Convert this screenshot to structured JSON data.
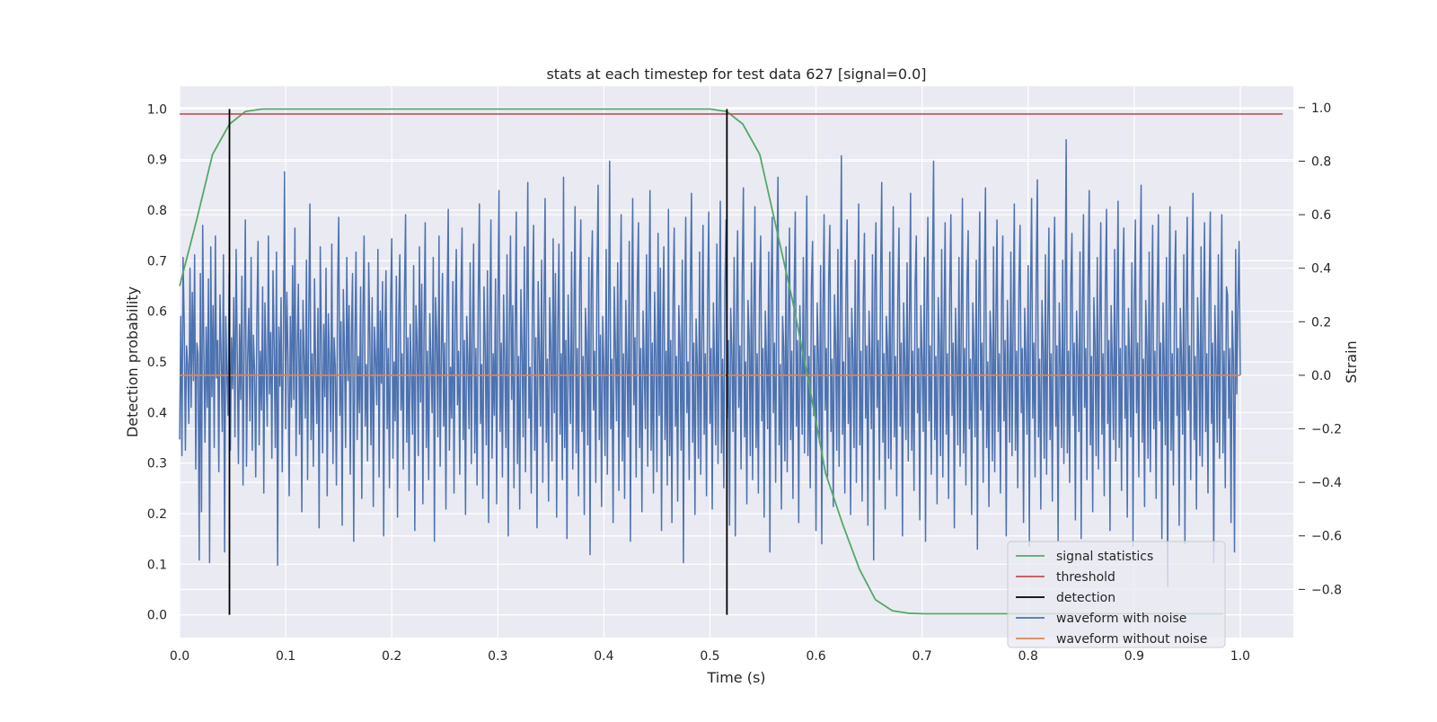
{
  "chart_data": {
    "type": "line",
    "title": "stats at each timestep for test data 627 [signal=0.0]",
    "xlabel": "Time (s)",
    "ylabel": "Detection probability",
    "y2label": "Strain",
    "xlim": [
      0.0,
      1.05
    ],
    "ylim": [
      -0.045,
      1.045
    ],
    "y2lim": [
      -0.98,
      1.08
    ],
    "x_ticks": [
      "0.0",
      "0.1",
      "0.2",
      "0.3",
      "0.4",
      "0.5",
      "0.6",
      "0.7",
      "0.8",
      "0.9",
      "1.0"
    ],
    "y_ticks": [
      "0.0",
      "0.1",
      "0.2",
      "0.3",
      "0.4",
      "0.5",
      "0.6",
      "0.7",
      "0.8",
      "0.9",
      "1.0"
    ],
    "y2_ticks": [
      "−0.8",
      "−0.6",
      "−0.4",
      "−0.2",
      "0.0",
      "0.2",
      "0.4",
      "0.6",
      "0.8",
      "1.0"
    ],
    "grid": true,
    "legend_position": "lower right",
    "colors": {
      "signal_statistics": "#55a868",
      "threshold": "#c44e52",
      "detection": "#000000",
      "waveform_with_noise": "#4c72b0",
      "waveform_without_noise": "#dd8452",
      "plot_background": "#eaeaf2",
      "grid": "#ffffff"
    },
    "series": [
      {
        "name": "signal statistics",
        "axis": "left",
        "x": [
          0.0,
          0.016,
          0.031,
          0.047,
          0.062,
          0.078,
          0.094,
          0.2,
          0.3,
          0.4,
          0.5,
          0.516,
          0.531,
          0.547,
          0.562,
          0.578,
          0.594,
          0.609,
          0.625,
          0.641,
          0.656,
          0.672,
          0.688,
          0.703,
          0.75,
          0.8,
          0.9,
          0.984
        ],
        "y": [
          0.65,
          0.78,
          0.91,
          0.97,
          0.995,
          1.0,
          1.0,
          1.0,
          1.0,
          1.0,
          1.0,
          0.995,
          0.97,
          0.91,
          0.77,
          0.62,
          0.45,
          0.28,
          0.18,
          0.09,
          0.03,
          0.008,
          0.003,
          0.002,
          0.002,
          0.002,
          0.002,
          0.002
        ]
      },
      {
        "name": "threshold",
        "axis": "left",
        "x": [
          0.0,
          1.04
        ],
        "y": [
          0.99,
          0.99
        ]
      },
      {
        "name": "detection",
        "axis": "left",
        "segments": [
          {
            "x": 0.047,
            "y": [
              0.0,
              1.0
            ]
          },
          {
            "x": 0.516,
            "y": [
              0.0,
              1.0
            ]
          }
        ]
      },
      {
        "name": "waveform with noise",
        "axis": "right",
        "x_range": [
          0.0,
          1.0
        ],
        "y": [
          -0.24,
          0.22,
          -0.3,
          0.44,
          0.19,
          -0.28,
          0.11,
          0.04,
          -0.18,
          0.4,
          -0.12,
          0.31,
          -0.02,
          0.45,
          -0.35,
          0.12,
          0.08,
          -0.69,
          0.38,
          -0.51,
          0.56,
          0.09,
          -0.25,
          0.18,
          -0.12,
          0.36,
          -0.7,
          0.48,
          -0.08,
          0.26,
          -0.27,
          0.52,
          -0.01,
          0.13,
          -0.36,
          0.3,
          0.07,
          -0.21,
          0.45,
          -0.66,
          0.22,
          0.01,
          -0.15,
          0.38,
          -0.28,
          0.14,
          -0.05,
          0.29,
          -0.23,
          0.47,
          0.08,
          -0.33,
          0.19,
          -0.09,
          0.37,
          -0.41,
          0.12,
          0.58,
          -0.34,
          0.06,
          0.25,
          -0.17,
          0.44,
          -0.28,
          0.15,
          0.02,
          -0.38,
          0.21,
          0.5,
          -0.26,
          0.09,
          -0.13,
          0.33,
          -0.44,
          0.27,
          0.04,
          -0.19,
          0.52,
          -0.07,
          0.16,
          -0.31,
          0.39,
          0.11,
          -0.27,
          0.46,
          -0.71,
          0.18,
          -0.04,
          0.29,
          -0.36,
          0.13,
          0.76,
          -0.2,
          0.31,
          0.07,
          -0.45,
          0.22,
          -0.12,
          0.41,
          -0.09,
          0.55,
          -0.3,
          0.1,
          0.34,
          -0.22,
          0.17,
          -0.51,
          0.28,
          0.06,
          -0.16,
          0.43,
          -0.39,
          0.21,
          0.64,
          -0.24,
          0.08,
          -0.34,
          0.36,
          0.02,
          -0.18,
          0.25,
          -0.57,
          0.48,
          0.12,
          -0.29,
          0.19,
          -0.08,
          0.4,
          -0.45,
          0.23,
          0.06,
          -0.21,
          0.49,
          -0.33,
          0.14,
          0.03,
          -0.41,
          0.31,
          0.59,
          -0.15,
          0.2,
          -0.56,
          0.32,
          0.09,
          -0.27,
          0.44,
          -0.02,
          0.26,
          -0.37,
          0.15,
          0.38,
          -0.62,
          0.11,
          0.46,
          -0.24,
          0.07,
          -0.14,
          0.33,
          -0.46,
          0.22,
          0.52,
          -0.19,
          0.04,
          -0.32,
          0.42,
          0.13,
          -0.26,
          0.29,
          -0.49,
          0.18,
          0.06,
          -0.11,
          0.47,
          -0.38,
          0.24,
          -0.03,
          0.35,
          -0.6,
          0.16,
          0.39,
          -0.2,
          0.1,
          -0.42,
          0.27,
          0.51,
          -0.31,
          0.05,
          -0.17,
          0.37,
          -0.53,
          0.21,
          0.45,
          -0.13,
          0.08,
          -0.35,
          0.3,
          0.6,
          -0.25,
          0.14,
          -0.43,
          0.19,
          0.01,
          -0.22,
          0.41,
          -0.58,
          0.26,
          0.12,
          -0.3,
          0.48,
          -0.1,
          0.34,
          -0.48,
          0.17,
          0.57,
          -0.27,
          0.09,
          -0.39,
          0.23,
          0.05,
          -0.14,
          0.44,
          -0.62,
          0.29,
          0.15,
          -0.23,
          0.52,
          -0.34,
          0.07,
          0.38,
          -0.19,
          0.12,
          -0.5,
          0.27,
          0.62,
          -0.28,
          0.03,
          -0.16,
          0.35,
          -0.44,
          0.2,
          0.47,
          -0.11,
          0.09,
          -0.37,
          0.31,
          0.55,
          -0.24,
          0.13,
          -0.52,
          0.22,
          0.06,
          -0.2,
          0.42,
          -0.33,
          0.17,
          0.49,
          -0.29,
          0.1,
          -0.41,
          0.28,
          0.64,
          -0.18,
          0.04,
          -0.46,
          0.33,
          0.11,
          -0.26,
          0.39,
          -0.55,
          0.19,
          0.58,
          -0.31,
          0.08,
          -0.15,
          0.36,
          -0.48,
          0.24,
          0.69,
          -0.21,
          0.12,
          -0.38,
          0.3,
          0.05,
          -0.27,
          0.45,
          -0.6,
          0.18,
          0.52,
          -0.09,
          0.26,
          -0.42,
          0.15,
          0.61,
          -0.33,
          0.07,
          -0.5,
          0.32,
          0.1,
          -0.23,
          0.48,
          -0.36,
          0.21,
          0.72,
          -0.16,
          0.03,
          -0.44,
          0.27,
          0.56,
          -0.28,
          0.14,
          -0.57,
          0.35,
          0.09,
          -0.19,
          0.43,
          -0.4,
          0.23,
          0.66,
          -0.25,
          0.06,
          -0.47,
          0.29,
          0.11,
          -0.32,
          0.51,
          -0.14,
          0.38,
          -0.53,
          0.17,
          0.49,
          -0.22,
          0.08,
          -0.39,
          0.74,
          -0.27,
          0.13,
          -0.61,
          0.3,
          0.04,
          -0.18,
          0.46,
          -0.35,
          0.2,
          0.63,
          -0.29,
          0.1,
          -0.45,
          0.34,
          0.58,
          -0.21,
          0.07,
          -0.52,
          0.25,
          0.12,
          -0.26,
          0.44,
          -0.67,
          0.31,
          0.54,
          -0.13,
          0.09,
          -0.4,
          0.36,
          0.71,
          -0.24,
          0.15,
          -0.49,
          0.22,
          0.02,
          -0.3,
          0.47,
          -0.37,
          0.18,
          0.8,
          -0.2,
          0.06,
          -0.55,
          0.33,
          0.11,
          -0.17,
          0.42,
          -0.43,
          0.27,
          0.6,
          -0.32,
          0.08,
          -0.46,
          0.28,
          0.05,
          -0.23,
          0.5,
          -0.62,
          0.19,
          0.66,
          -0.11,
          0.14,
          -0.38,
          0.35,
          0.57,
          -0.27,
          0.1,
          -0.51,
          0.24,
          0.03,
          -0.2,
          0.45,
          -0.34,
          0.22,
          0.69,
          -0.28,
          0.12,
          -0.44,
          0.31,
          0.07,
          -0.36,
          0.53,
          -0.15,
          0.4,
          -0.58,
          0.16,
          0.48,
          -0.24,
          0.09,
          -0.41,
          0.62,
          -0.3,
          0.13,
          -0.55,
          0.29,
          0.55,
          -0.19,
          0.07,
          -0.47,
          0.26,
          0.11,
          -0.28,
          0.43,
          -0.7,
          0.2,
          0.59,
          -0.14,
          0.05,
          -0.39,
          0.33,
          0.68,
          -0.25,
          0.12,
          -0.52,
          0.21,
          0.04,
          -0.31,
          0.46,
          -0.37,
          0.17,
          0.56,
          -0.22,
          0.08,
          -0.45,
          0.3,
          0.61,
          -0.18,
          0.1,
          -0.5,
          0.27,
          0.02,
          -0.26,
          0.49,
          -0.33,
          0.23,
          0.65,
          -0.29,
          0.06,
          -0.42,
          0.34,
          0.58,
          -0.16,
          0.13,
          -0.56,
          0.25,
          0.09,
          -0.21,
          0.44,
          -0.6,
          0.19,
          0.54,
          -0.12,
          0.11,
          -0.35,
          0.37,
          0.7,
          -0.23,
          0.05,
          -0.48,
          0.28,
          0.14,
          -0.3,
          0.42,
          -0.39,
          0.21,
          0.63,
          -0.27,
          0.08,
          -0.44,
          0.32,
          0.52,
          -0.17,
          0.1,
          -0.53,
          0.24,
          0.06,
          -0.2,
          0.46,
          -0.66,
          0.3,
          0.59,
          -0.14,
          0.12,
          -0.4,
          0.35,
          0.74,
          -0.26,
          0.04,
          -0.5,
          0.22,
          0.1,
          -0.32,
          0.48,
          -0.36,
          0.18,
          0.55,
          -0.24,
          0.09,
          -0.46,
          0.29,
          0.61,
          -0.19,
          0.13,
          -0.55,
          0.26,
          0.03,
          -0.22,
          0.44,
          -0.29,
          0.2,
          0.67,
          -0.3,
          0.07,
          -0.42,
          0.33,
          0.5,
          -0.15,
          0.11,
          -0.58,
          0.27,
          0.08,
          -0.25,
          0.41,
          -0.63,
          0.23,
          0.6,
          -0.13,
          0.1,
          -0.38,
          0.36,
          0.56,
          -0.21,
          0.06,
          -0.49,
          0.3,
          0.12,
          -0.28,
          0.47,
          -0.34,
          0.19,
          0.82,
          -0.22,
          0.05,
          -0.44,
          0.31,
          0.58,
          -0.18,
          0.14,
          -0.52,
          0.25,
          0.07,
          -0.27,
          0.43,
          -0.4,
          0.21,
          0.64,
          -0.26,
          0.09,
          -0.47,
          0.28,
          0.53,
          -0.16,
          0.11,
          -0.56,
          0.24,
          0.04,
          -0.2,
          0.45,
          -0.69,
          0.33,
          0.57,
          -0.12,
          0.13,
          -0.39,
          0.37,
          0.72,
          -0.25,
          0.08,
          -0.5,
          0.22,
          0.1,
          -0.31,
          0.46,
          -0.35,
          0.17,
          0.63,
          -0.23,
          0.07,
          -0.45,
          0.3,
          0.55,
          -0.19,
          0.12,
          -0.6,
          0.27,
          0.05,
          -0.24,
          0.42,
          -0.32,
          0.2,
          0.68,
          -0.28,
          0.09,
          -0.43,
          0.34,
          0.52,
          -0.14,
          0.1,
          -0.54,
          0.26,
          0.06,
          -0.21,
          0.44,
          -0.62,
          0.23,
          0.59,
          -0.17,
          0.11,
          -0.37,
          0.38,
          0.8,
          -0.24,
          0.07,
          -0.48,
          0.29,
          0.13,
          -0.3,
          0.47,
          -0.38,
          0.18,
          0.57,
          -0.22,
          0.08,
          -0.46,
          0.32,
          0.6,
          -0.15,
          0.12,
          -0.57,
          0.25,
          0.04,
          -0.26,
          0.44,
          -0.34,
          0.21,
          0.66,
          -0.29,
          0.1,
          -0.41,
          0.35,
          0.54,
          -0.2,
          0.06,
          -0.52,
          0.27,
          0.09,
          -0.23,
          0.43,
          -0.65,
          0.22,
          0.61,
          -0.13,
          0.12,
          -0.4,
          0.36,
          0.7,
          -0.27,
          0.05,
          -0.49,
          0.24,
          0.11,
          -0.32,
          0.48,
          -0.36,
          0.19,
          0.58,
          -0.21,
          0.08,
          -0.44,
          0.3,
          0.52,
          -0.17,
          0.13,
          -0.6,
          0.28,
          0.03,
          -0.25,
          0.46,
          -0.3,
          0.2,
          0.64,
          -0.28,
          0.09,
          -0.42,
          0.33,
          0.56,
          -0.14,
          0.1,
          -0.55,
          0.25,
          0.07,
          -0.22,
          0.41,
          -0.64,
          0.26,
          0.66,
          -0.16,
          0.12,
          -0.38,
          0.37,
          0.73,
          -0.23,
          0.06,
          -0.5,
          0.28,
          0.1,
          -0.31,
          0.45,
          -0.37,
          0.18,
          0.55,
          -0.24,
          0.08,
          -0.47,
          0.31,
          0.59,
          -0.19,
          0.11,
          -0.62,
          0.27,
          0.05,
          -0.27,
          0.43,
          -0.33,
          0.22,
          0.88,
          -0.29,
          0.09,
          -0.4,
          0.34,
          0.53,
          -0.15,
          0.12,
          -0.54,
          0.24,
          0.06,
          -0.21,
          0.46,
          -0.61,
          0.23,
          0.6,
          -0.12,
          0.1,
          -0.39,
          0.36,
          0.69,
          -0.26,
          0.07,
          -0.51,
          0.29,
          0.12,
          -0.3,
          0.44,
          -0.35,
          0.19,
          0.57,
          -0.22,
          0.08,
          -0.45,
          0.32,
          0.62,
          -0.18,
          0.13,
          -0.58,
          0.26,
          0.04,
          -0.24,
          0.47,
          -0.32,
          0.21,
          0.65,
          -0.27,
          0.1,
          -0.43,
          0.35,
          0.55,
          -0.16,
          0.11,
          -0.53,
          0.25,
          0.07,
          -0.23,
          0.42,
          -0.64,
          0.24,
          0.58,
          -0.14,
          0.12,
          -0.38,
          0.37,
          0.71,
          -0.25,
          0.06,
          -0.49,
          0.28,
          0.11,
          -0.31,
          0.46,
          -0.36,
          0.18,
          0.56,
          -0.2,
          0.09,
          -0.46,
          0.3,
          0.6,
          -0.17,
          0.12,
          -0.61,
          0.27,
          0.05,
          -0.26,
          0.44,
          -0.79,
          0.22,
          0.63,
          -0.28,
          0.08,
          -0.41,
          0.34,
          0.54,
          -0.15,
          0.1,
          -0.56,
          0.25,
          0.06,
          -0.22,
          0.45,
          -0.63,
          0.23,
          0.59,
          -0.13,
          0.11,
          -0.39,
          0.36,
          0.68,
          -0.24,
          0.07,
          -0.5,
          0.29,
          0.1,
          -0.3,
          0.48,
          -0.34,
          0.19,
          0.57,
          -0.21,
          0.08,
          -0.44,
          0.31,
          0.61,
          -0.18,
          0.12,
          -0.7,
          0.26,
          0.04,
          -0.25,
          0.45,
          -0.31,
          0.2,
          0.6,
          -0.29,
          0.09,
          -0.42,
          0.33,
          0.3,
          -0.16,
          0.1,
          -0.55,
          0.24,
          0.06,
          -0.66,
          0.47,
          -0.07,
          0.28,
          0.5,
          0.0
        ]
      },
      {
        "name": "waveform without noise",
        "axis": "right",
        "x": [
          0.0,
          1.0
        ],
        "y": [
          0.0,
          0.0
        ]
      }
    ],
    "legend": [
      {
        "label": "signal statistics",
        "key": "signal_statistics"
      },
      {
        "label": "threshold",
        "key": "threshold"
      },
      {
        "label": "detection",
        "key": "detection"
      },
      {
        "label": "waveform with noise",
        "key": "waveform_with_noise"
      },
      {
        "label": "waveform without noise",
        "key": "waveform_without_noise"
      }
    ]
  }
}
